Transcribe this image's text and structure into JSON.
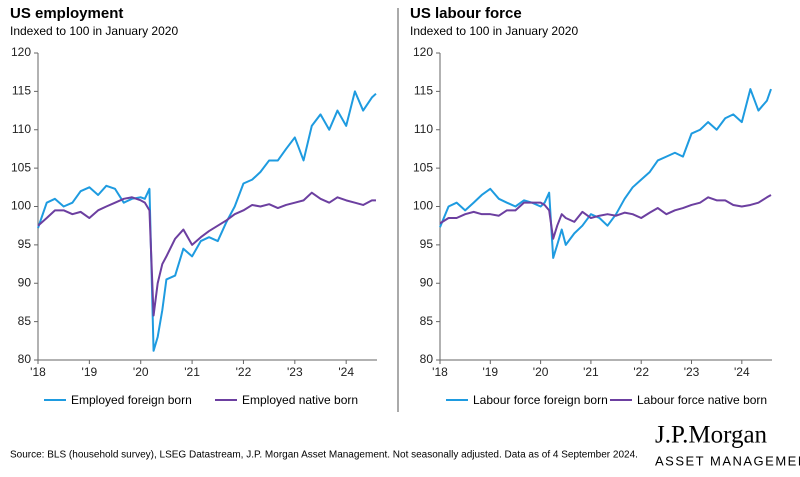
{
  "chart_data": [
    {
      "type": "line",
      "title": "US employment",
      "subtitle": "Indexed to 100 in January 2020",
      "x": [
        2018.0,
        2018.17,
        2018.33,
        2018.5,
        2018.67,
        2018.83,
        2019.0,
        2019.17,
        2019.33,
        2019.5,
        2019.67,
        2019.83,
        2020.0,
        2020.08,
        2020.17,
        2020.25,
        2020.33,
        2020.42,
        2020.5,
        2020.67,
        2020.83,
        2021.0,
        2021.17,
        2021.33,
        2021.5,
        2021.67,
        2021.83,
        2022.0,
        2022.17,
        2022.33,
        2022.5,
        2022.67,
        2022.83,
        2023.0,
        2023.17,
        2023.33,
        2023.5,
        2023.67,
        2023.83,
        2024.0,
        2024.17,
        2024.33,
        2024.5,
        2024.58
      ],
      "series": [
        {
          "name": "Employed foreign born",
          "color": "#1e9be0",
          "values": [
            97.2,
            100.5,
            101,
            100,
            100.5,
            102,
            102.5,
            101.5,
            102.7,
            102.3,
            100.5,
            101,
            101.2,
            101,
            102.3,
            81.2,
            83,
            86.5,
            90.5,
            91,
            94.5,
            93.5,
            95.5,
            96,
            95.5,
            98,
            100,
            103,
            103.5,
            104.5,
            106,
            106,
            107.5,
            109,
            106,
            110.5,
            112,
            110,
            112.5,
            110.5,
            115,
            112.5,
            114.2,
            114.7
          ]
        },
        {
          "name": "Employed native born",
          "color": "#6c3fa0",
          "values": [
            97.5,
            98.5,
            99.5,
            99.5,
            99,
            99.3,
            98.5,
            99.5,
            100,
            100.5,
            101,
            101.2,
            100.8,
            100.5,
            99.5,
            85.8,
            90,
            92.5,
            93.5,
            95.8,
            97,
            95,
            96,
            96.8,
            97.5,
            98.2,
            99,
            99.5,
            100.2,
            100,
            100.3,
            99.8,
            100.2,
            100.5,
            100.8,
            101.8,
            101,
            100.5,
            101.2,
            100.8,
            100.5,
            100.2,
            100.8,
            100.8
          ]
        }
      ],
      "xlim": [
        2018,
        2024.6
      ],
      "xticks": [
        {
          "value": 2018,
          "label": "'18"
        },
        {
          "value": 2019,
          "label": "'19"
        },
        {
          "value": 2020,
          "label": "'20"
        },
        {
          "value": 2021,
          "label": "'21"
        },
        {
          "value": 2022,
          "label": "'22"
        },
        {
          "value": 2023,
          "label": "'23"
        },
        {
          "value": 2024,
          "label": "'24"
        }
      ],
      "ylim": [
        80,
        120
      ],
      "yticks": [
        80,
        85,
        90,
        95,
        100,
        105,
        110,
        115,
        120
      ],
      "grid": false,
      "legend": "bottom"
    },
    {
      "type": "line",
      "title": "US labour force",
      "subtitle": "Indexed to 100 in January 2020",
      "x": [
        2018.0,
        2018.17,
        2018.33,
        2018.5,
        2018.67,
        2018.83,
        2019.0,
        2019.17,
        2019.33,
        2019.5,
        2019.67,
        2019.83,
        2020.0,
        2020.08,
        2020.17,
        2020.25,
        2020.33,
        2020.42,
        2020.5,
        2020.67,
        2020.83,
        2021.0,
        2021.17,
        2021.33,
        2021.5,
        2021.67,
        2021.83,
        2022.0,
        2022.17,
        2022.33,
        2022.5,
        2022.67,
        2022.83,
        2023.0,
        2023.17,
        2023.33,
        2023.5,
        2023.67,
        2023.83,
        2024.0,
        2024.17,
        2024.33,
        2024.5,
        2024.58
      ],
      "series": [
        {
          "name": "Labour force foreign born",
          "color": "#1e9be0",
          "values": [
            97.3,
            100,
            100.5,
            99.5,
            100.5,
            101.5,
            102.3,
            101,
            100.5,
            100,
            100.8,
            100.5,
            100,
            100.5,
            101.8,
            93.3,
            95,
            97,
            95,
            96.5,
            97.5,
            99,
            98.5,
            97.5,
            99,
            101,
            102.5,
            103.5,
            104.5,
            106,
            106.5,
            107,
            106.5,
            109.5,
            110,
            111,
            110,
            111.5,
            112,
            111,
            115.3,
            112.5,
            113.8,
            115.3
          ]
        },
        {
          "name": "Labour force native born",
          "color": "#6c3fa0",
          "values": [
            97.8,
            98.5,
            98.5,
            99,
            99.3,
            99,
            99,
            98.8,
            99.5,
            99.5,
            100.5,
            100.5,
            100.5,
            100.2,
            99.5,
            95.8,
            97.5,
            99,
            98.5,
            98,
            99.3,
            98.5,
            98.8,
            99,
            98.8,
            99.2,
            99,
            98.5,
            99.2,
            99.8,
            99,
            99.5,
            99.8,
            100.2,
            100.5,
            101.2,
            100.8,
            100.8,
            100.2,
            100,
            100.2,
            100.5,
            101.2,
            101.5
          ]
        }
      ],
      "xlim": [
        2018,
        2024.6
      ],
      "xticks": [
        {
          "value": 2018,
          "label": "'18"
        },
        {
          "value": 2019,
          "label": "'19"
        },
        {
          "value": 2020,
          "label": "'20"
        },
        {
          "value": 2021,
          "label": "'21"
        },
        {
          "value": 2022,
          "label": "'22"
        },
        {
          "value": 2023,
          "label": "'23"
        },
        {
          "value": 2024,
          "label": "'24"
        }
      ],
      "ylim": [
        80,
        120
      ],
      "yticks": [
        80,
        85,
        90,
        95,
        100,
        105,
        110,
        115,
        120
      ],
      "grid": false,
      "legend": "bottom"
    }
  ],
  "footer": {
    "source": "Source: BLS (household survey), LSEG Datastream, J.P. Morgan Asset Management. Not seasonally adjusted. Data as of 4 September 2024.",
    "logo": "J.P.Morgan",
    "logo_subtitle": "ASSET MANAGEMENT"
  }
}
